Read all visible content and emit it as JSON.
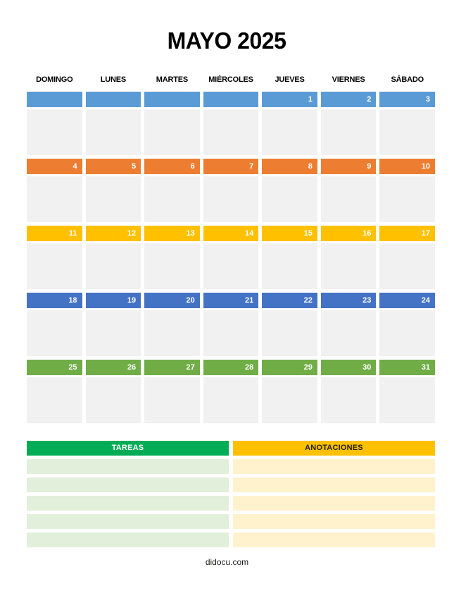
{
  "page": {
    "title": "MAYO 2025",
    "footer": "didocu.com"
  },
  "calendar": {
    "day_headers": [
      "DOMINGO",
      "LUNES",
      "MARTES",
      "MIÉRCOLES",
      "JUEVES",
      "VIERNES",
      "SÁBADO"
    ],
    "weeks": [
      {
        "name": "week-1",
        "color": "#5B9BD5",
        "days": [
          "",
          "",
          "",
          "",
          "1",
          "2",
          "3"
        ]
      },
      {
        "name": "week-2",
        "color": "#ED7D31",
        "days": [
          "4",
          "5",
          "6",
          "7",
          "8",
          "9",
          "10"
        ]
      },
      {
        "name": "week-3",
        "color": "#FFC000",
        "days": [
          "11",
          "12",
          "13",
          "14",
          "15",
          "16",
          "17"
        ]
      },
      {
        "name": "week-4",
        "color": "#4472C4",
        "days": [
          "18",
          "19",
          "20",
          "21",
          "22",
          "23",
          "24"
        ]
      },
      {
        "name": "week-5",
        "color": "#70AD47",
        "days": [
          "25",
          "26",
          "27",
          "28",
          "29",
          "30",
          "31"
        ]
      }
    ],
    "cell_bg": "#F1F1F1",
    "date_text_color": "#FFFFFF"
  },
  "notes": {
    "columns": [
      {
        "label": "TAREAS",
        "header_bg": "#00AC55",
        "header_text": "#FFFFFF",
        "row_bg": "#E2EFDA"
      },
      {
        "label": "ANOTACIONES",
        "header_bg": "#FFC000",
        "header_text": "#1D1D1B",
        "row_bg": "#FFF2CC"
      }
    ],
    "rows": 5
  }
}
